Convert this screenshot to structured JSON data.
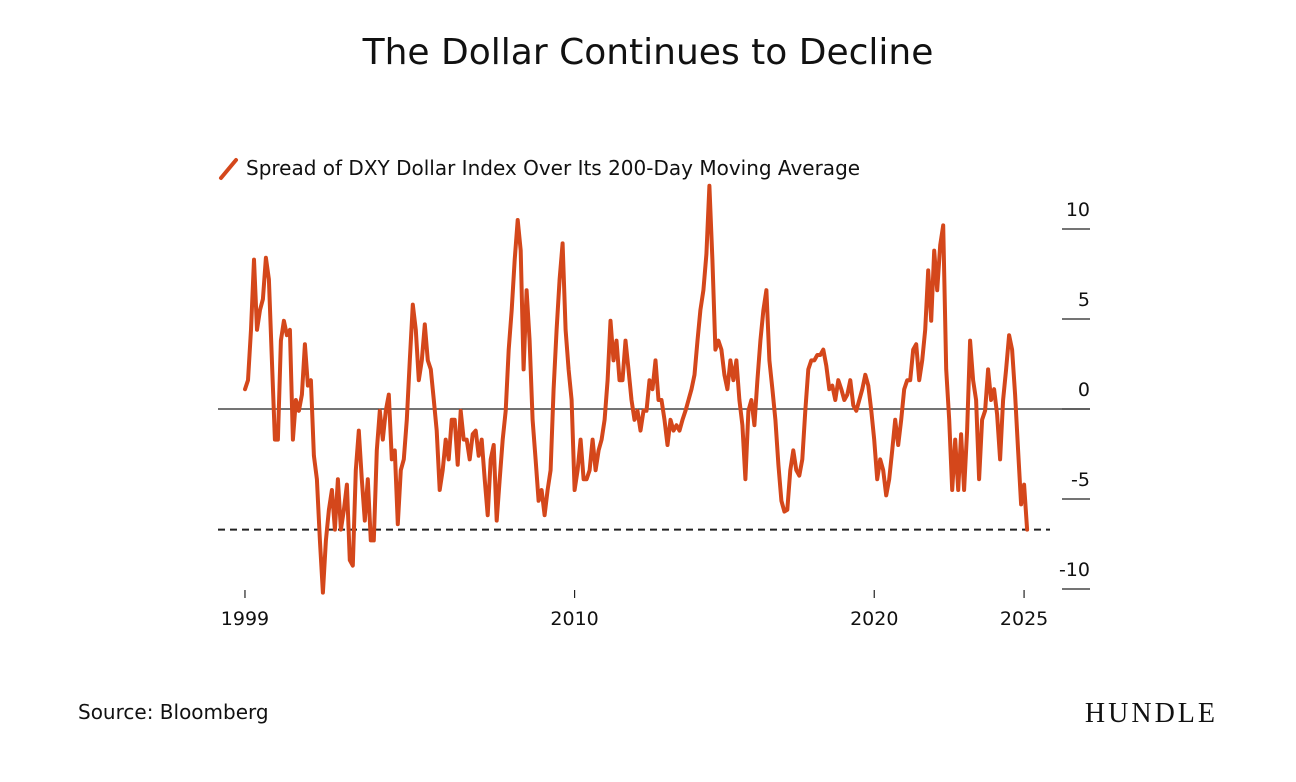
{
  "chart_data": {
    "type": "line",
    "title": "The Dollar Continues to Decline",
    "source": "Source: Bloomberg",
    "brand": "HUNDLE",
    "x": [
      1999,
      1999.1,
      1999.2,
      1999.3,
      1999.4,
      1999.5,
      1999.6,
      1999.7,
      1999.8,
      1999.9,
      2000,
      2000.1,
      2000.2,
      2000.3,
      2000.4,
      2000.5,
      2000.6,
      2000.7,
      2000.8,
      2000.9,
      2001,
      2001.1,
      2001.2,
      2001.3,
      2001.4,
      2001.5,
      2001.6,
      2001.7,
      2001.8,
      2001.9,
      2002,
      2002.1,
      2002.2,
      2002.3,
      2002.4,
      2002.5,
      2002.6,
      2002.7,
      2002.8,
      2002.9,
      2003,
      2003.1,
      2003.2,
      2003.3,
      2003.4,
      2003.5,
      2003.6,
      2003.7,
      2003.8,
      2003.9,
      2004,
      2004.1,
      2004.2,
      2004.3,
      2004.4,
      2004.5,
      2004.6,
      2004.7,
      2004.8,
      2004.9,
      2005,
      2005.1,
      2005.2,
      2005.3,
      2005.4,
      2005.5,
      2005.6,
      2005.7,
      2005.8,
      2005.9,
      2006,
      2006.1,
      2006.2,
      2006.3,
      2006.4,
      2006.5,
      2006.6,
      2006.7,
      2006.8,
      2006.9,
      2007,
      2007.1,
      2007.2,
      2007.3,
      2007.4,
      2007.5,
      2007.6,
      2007.7,
      2007.8,
      2007.9,
      2008,
      2008.1,
      2008.2,
      2008.3,
      2008.4,
      2008.5,
      2008.6,
      2008.7,
      2008.8,
      2008.9,
      2009,
      2009.1,
      2009.2,
      2009.3,
      2009.4,
      2009.5,
      2009.6,
      2009.7,
      2009.8,
      2009.9,
      2010,
      2010.1,
      2010.2,
      2010.3,
      2010.4,
      2010.5,
      2010.6,
      2010.7,
      2010.8,
      2010.9,
      2011,
      2011.1,
      2011.2,
      2011.3,
      2011.4,
      2011.5,
      2011.6,
      2011.7,
      2011.8,
      2011.9,
      2012,
      2012.1,
      2012.2,
      2012.3,
      2012.4,
      2012.5,
      2012.6,
      2012.7,
      2012.8,
      2012.9,
      2013,
      2013.1,
      2013.2,
      2013.3,
      2013.4,
      2013.5,
      2013.6,
      2013.7,
      2013.8,
      2013.9,
      2014,
      2014.1,
      2014.2,
      2014.3,
      2014.4,
      2014.5,
      2014.6,
      2014.7,
      2014.8,
      2014.9,
      2015,
      2015.1,
      2015.2,
      2015.3,
      2015.4,
      2015.5,
      2015.6,
      2015.7,
      2015.8,
      2015.9,
      2016,
      2016.1,
      2016.2,
      2016.3,
      2016.4,
      2016.5,
      2016.6,
      2016.7,
      2016.8,
      2016.9,
      2017,
      2017.1,
      2017.2,
      2017.3,
      2017.4,
      2017.5,
      2017.6,
      2017.7,
      2017.8,
      2017.9,
      2018,
      2018.1,
      2018.2,
      2018.3,
      2018.4,
      2018.5,
      2018.6,
      2018.7,
      2018.8,
      2018.9,
      2019,
      2019.1,
      2019.2,
      2019.3,
      2019.4,
      2019.5,
      2019.6,
      2019.7,
      2019.8,
      2019.9,
      2020,
      2020.1,
      2020.2,
      2020.3,
      2020.4,
      2020.5,
      2020.6,
      2020.7,
      2020.8,
      2020.9,
      2021,
      2021.1,
      2021.2,
      2021.3,
      2021.4,
      2021.5,
      2021.6,
      2021.7,
      2021.8,
      2021.9,
      2022,
      2022.1,
      2022.2,
      2022.3,
      2022.4,
      2022.5,
      2022.6,
      2022.7,
      2022.8,
      2022.9,
      2023,
      2023.1,
      2023.2,
      2023.3,
      2023.4,
      2023.5,
      2023.6,
      2023.7,
      2023.8,
      2023.9,
      2024,
      2024.1,
      2024.2,
      2024.3,
      2024.4,
      2024.5,
      2024.6,
      2024.7,
      2024.8,
      2024.9,
      2025,
      2025.1
    ],
    "series": [
      {
        "name": "Spread of DXY Dollar Index Over Its 200-Day Moving Average",
        "color": "#d4471b",
        "values": [
          1.1,
          1.6,
          4.4,
          8.3,
          4.4,
          5.5,
          6.1,
          8.4,
          7.2,
          2.7,
          -1.7,
          -1.7,
          3.8,
          4.9,
          4.1,
          4.4,
          -1.7,
          0.5,
          -0.1,
          0.8,
          3.6,
          1.3,
          1.6,
          -2.6,
          -3.9,
          -7.3,
          -10.2,
          -7.3,
          -5.6,
          -4.5,
          -6.7,
          -3.9,
          -6.7,
          -5.6,
          -4.2,
          -8.4,
          -8.7,
          -3.4,
          -1.2,
          -3.9,
          -6.2,
          -3.9,
          -7.3,
          -7.3,
          -2.3,
          -0.1,
          -1.7,
          -0.1,
          0.8,
          -2.8,
          -2.3,
          -6.4,
          -3.4,
          -2.8,
          -0.6,
          2.7,
          5.8,
          4.4,
          1.6,
          2.7,
          4.7,
          2.7,
          2.2,
          0.5,
          -1.2,
          -4.5,
          -3.4,
          -1.7,
          -2.8,
          -0.6,
          -0.6,
          -3.1,
          -0.1,
          -1.7,
          -1.7,
          -2.8,
          -1.4,
          -1.2,
          -2.6,
          -1.7,
          -3.9,
          -5.9,
          -2.8,
          -2.0,
          -6.2,
          -3.9,
          -1.7,
          -0.1,
          3.3,
          5.5,
          8.3,
          10.5,
          8.8,
          2.2,
          6.6,
          3.8,
          -0.6,
          -2.8,
          -5.1,
          -4.5,
          -5.9,
          -4.5,
          -3.4,
          1.1,
          4.4,
          7.2,
          9.2,
          4.4,
          2.2,
          0.5,
          -4.5,
          -3.4,
          -1.7,
          -3.9,
          -3.9,
          -3.4,
          -1.7,
          -3.4,
          -2.3,
          -1.7,
          -0.6,
          1.6,
          4.9,
          2.7,
          3.8,
          1.6,
          1.6,
          3.8,
          2.2,
          0.5,
          -0.6,
          -0.1,
          -1.2,
          -0.1,
          -0.1,
          1.6,
          1.1,
          2.7,
          0.5,
          0.5,
          -0.6,
          -2.0,
          -0.6,
          -1.2,
          -0.9,
          -1.2,
          -0.6,
          -0.1,
          0.5,
          1.1,
          1.9,
          3.8,
          5.5,
          6.6,
          8.6,
          12.4,
          8.3,
          3.3,
          3.8,
          3.3,
          1.9,
          1.1,
          2.7,
          1.6,
          2.7,
          0.5,
          -0.9,
          -3.9,
          -0.1,
          0.5,
          -0.9,
          1.6,
          3.8,
          5.5,
          6.6,
          2.7,
          1.1,
          -0.6,
          -3.1,
          -5.1,
          -5.7,
          -5.6,
          -3.4,
          -2.3,
          -3.4,
          -3.7,
          -2.8,
          -0.1,
          2.2,
          2.7,
          2.7,
          3.0,
          3.0,
          3.3,
          2.4,
          1.1,
          1.3,
          0.5,
          1.6,
          1.1,
          0.5,
          0.8,
          1.6,
          0.2,
          -0.1,
          0.5,
          1.1,
          1.9,
          1.3,
          -0.1,
          -1.7,
          -3.9,
          -2.8,
          -3.4,
          -4.8,
          -3.9,
          -2.3,
          -0.6,
          -2.0,
          -0.6,
          1.1,
          1.6,
          1.6,
          3.3,
          3.6,
          1.6,
          2.7,
          4.4,
          7.7,
          4.9,
          8.8,
          6.6,
          9.1,
          10.2,
          2.2,
          -0.6,
          -4.5,
          -1.7,
          -4.5,
          -1.4,
          -4.5,
          -1.2,
          3.8,
          1.6,
          0.5,
          -3.9,
          -0.6,
          -0.1,
          2.2,
          0.5,
          1.1,
          -0.3,
          -2.8,
          0.5,
          2.2,
          4.1,
          3.3,
          0.8,
          -2.3,
          -5.3,
          -4.2,
          -6.7
        ]
      }
    ],
    "xlim": [
      1998.1,
      2027.2
    ],
    "xticks": [
      1999,
      2010,
      2020,
      2025
    ],
    "ylim": [
      -10.5,
      12.5
    ],
    "yticks": [
      10,
      5,
      0,
      -5,
      -10
    ],
    "hlines": [
      {
        "value": 0,
        "style": "solid"
      },
      {
        "value": -6.7,
        "style": "dashed"
      }
    ]
  }
}
